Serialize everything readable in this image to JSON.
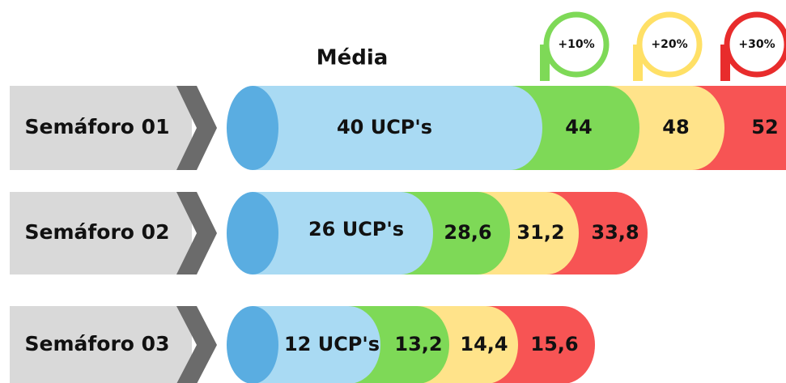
{
  "title": "Média",
  "legend": [
    "+10%",
    "+20%",
    "+30%"
  ],
  "rows": [
    {
      "label": "Semáforo 01",
      "base": "40 UCP's",
      "levels": [
        "44",
        "48",
        "52"
      ]
    },
    {
      "label": "Semáforo 02",
      "base": "26 UCP's",
      "levels": [
        "28,6",
        "31,2",
        "33,8"
      ]
    },
    {
      "label": "Semáforo 03",
      "base": "12 UCP's",
      "levels": [
        "13,2",
        "14,4",
        "15,6"
      ]
    }
  ]
}
